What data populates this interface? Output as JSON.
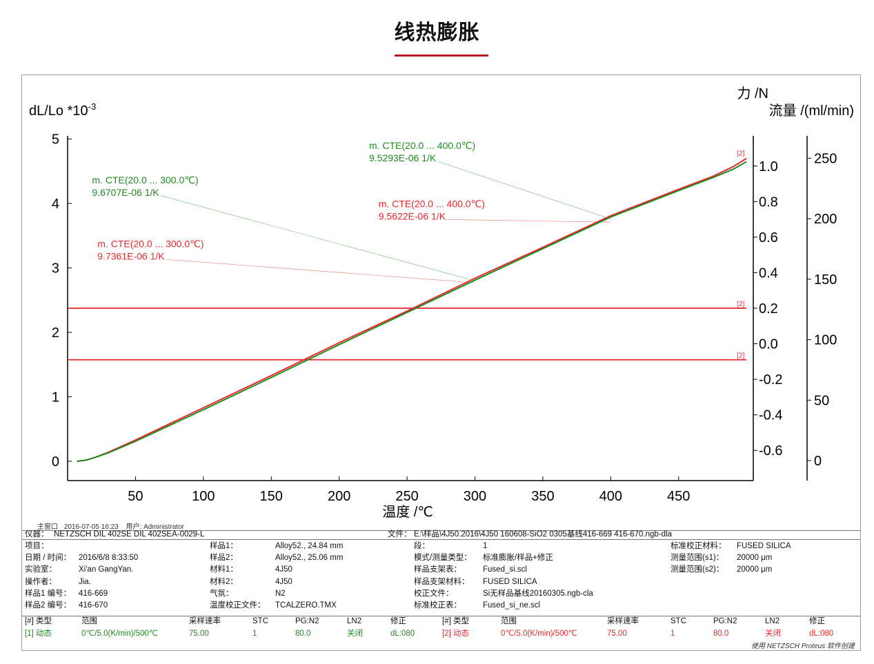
{
  "page": {
    "title": "线热膨胀",
    "accent_color": "#b81c22"
  },
  "chart_data": {
    "type": "line",
    "title": "",
    "xlabel": "温度 /℃",
    "ylabel": "dL/Lo *10",
    "ylabel_exp": "-3",
    "y2label_line1": "力 /N",
    "y2label_line2": "流量 /(ml/min)",
    "xlim": [
      0,
      505
    ],
    "ylim": [
      -0.3,
      5.05
    ],
    "y2lim": [
      -0.77,
      1.17
    ],
    "y3lim": [
      -16.5,
      268.5
    ],
    "x_ticks": [
      50,
      100,
      150,
      200,
      250,
      300,
      350,
      400,
      450
    ],
    "y_ticks": [
      0,
      1,
      2,
      3,
      4,
      5
    ],
    "y2_ticks": [
      "1.0",
      "0.8",
      "0.6",
      "0.4",
      "0.2",
      "0.0",
      "-0.2",
      "-0.4",
      "-0.6"
    ],
    "y3_ticks": [
      250,
      200,
      150,
      100,
      50,
      0
    ],
    "grid": false,
    "series": [
      {
        "color": "#e8282a",
        "x": [
          7,
          14,
          20,
          30,
          50,
          100,
          150,
          200,
          250,
          300,
          350,
          400,
          450,
          475,
          490,
          500
        ],
        "y": [
          0.0,
          0.02,
          0.06,
          0.14,
          0.33,
          0.83,
          1.33,
          1.84,
          2.33,
          2.84,
          3.32,
          3.81,
          4.22,
          4.42,
          4.57,
          4.7
        ]
      },
      {
        "color": "#1f8a1f",
        "x": [
          7,
          14,
          20,
          30,
          50,
          100,
          150,
          200,
          250,
          300,
          350,
          400,
          450,
          475,
          490,
          500
        ],
        "y": [
          0.0,
          0.02,
          0.06,
          0.13,
          0.31,
          0.8,
          1.3,
          1.81,
          2.31,
          2.81,
          3.3,
          3.79,
          4.2,
          4.4,
          4.53,
          4.65
        ]
      }
    ],
    "hlines": [
      {
        "axis": "y2",
        "value": 0.2,
        "color": "#e8282a",
        "tag": "[2]"
      },
      {
        "axis": "y2",
        "value": -0.09,
        "color": "#e8282a",
        "tag": "[2]"
      }
    ],
    "end_tag": "[2]",
    "annotations": [
      {
        "line1": "m. CTE(20.0 ... 400.0℃)",
        "line2": "9.5293E-06 1/K",
        "color": "#1f8a1f",
        "label_x": 222,
        "label_y": 4.78,
        "target_x": 400,
        "target_y": 3.76
      },
      {
        "line1": "m. CTE(20.0 ... 300.0℃)",
        "line2": "9.6707E-06 1/K",
        "color": "#1f8a1f",
        "label_x": 18,
        "label_y": 4.25,
        "target_x": 300,
        "target_y": 2.8
      },
      {
        "line1": "m. CTE(20.0 ... 400.0℃)",
        "line2": "9.5622E-06 1/K",
        "color": "#e8282a",
        "label_x": 229,
        "label_y": 3.88,
        "target_x": 400,
        "target_y": 3.71
      },
      {
        "line1": "m. CTE(20.0 ... 300.0℃)",
        "line2": "9.7361E-06 1/K",
        "color": "#e8282a",
        "label_x": 22,
        "label_y": 3.26,
        "target_x": 300,
        "target_y": 2.77
      }
    ]
  },
  "footer": {
    "window_label": "主窗口",
    "datetime": "2016-07-05 16:23",
    "user_label": "用户:",
    "user": "Administrator"
  },
  "info": {
    "instrument_label": "仪器：",
    "instrument": "NETZSCH DIL 402SE DIL 402SEA-0029-L",
    "file_label": "文件：",
    "file": "E:\\样品\\4J50.2016\\4J50 160608-SiO2 0305基线416-669 416-670.ngb-dla",
    "col1": [
      [
        "项目：",
        ""
      ],
      [
        "日期 / 时间：",
        "2016/6/8 8:33:50"
      ],
      [
        "实验室：",
        "Xi'an GangYan."
      ],
      [
        "操作者：",
        "Jia."
      ],
      [
        "样品1 编号：",
        "416-669"
      ],
      [
        "样品2 编号：",
        "416-670"
      ]
    ],
    "col2": [
      [
        "样品1：",
        "Alloy52., 24.84 mm"
      ],
      [
        "样品2：",
        "Alloy52., 25.06 mm"
      ],
      [
        "材料1：",
        "4J50"
      ],
      [
        "材料2：",
        "4J50"
      ],
      [
        "气氛：",
        "N2"
      ],
      [
        "温度校正文件：",
        "TCALZERO.TMX"
      ]
    ],
    "col3": [
      [
        "段：",
        "1"
      ],
      [
        "模式/测量类型：",
        "标准膨胀/样品+修正"
      ],
      [
        "样品支架表：",
        "Fused_si.scl"
      ],
      [
        "样品支架材料：",
        "FUSED SILICA"
      ],
      [
        "校正文件：",
        "Si无样品基线20160305.ngb-cla"
      ],
      [
        "标准校正表：",
        "Fused_si_ne.scl"
      ]
    ],
    "col4": [
      [
        "标准校正材料：",
        "FUSED SILICA"
      ],
      [
        "测量范围(s1)：",
        "20000 μm"
      ],
      [
        "测量范围(s2)：",
        "20000 μm"
      ]
    ],
    "seg_headers": [
      "[#] 类型",
      "范围",
      "采样速率",
      "STC",
      "PG:N2",
      "LN2",
      "修正"
    ],
    "seg1": [
      "[1] 动态",
      "0℃/5.0(K/min)/500℃",
      "75.00",
      "1",
      "80.0",
      "关闭",
      "dL:080"
    ],
    "seg2": [
      "[2] 动态",
      "0℃/5.0(K/min)/500℃",
      "75.00",
      "1",
      "80.0",
      "关闭",
      "dL:080"
    ],
    "seg1_color": "#1f8a1f",
    "seg2_color": "#e8282a",
    "credit": "使用 NETZSCH Proteus 软件创建"
  }
}
